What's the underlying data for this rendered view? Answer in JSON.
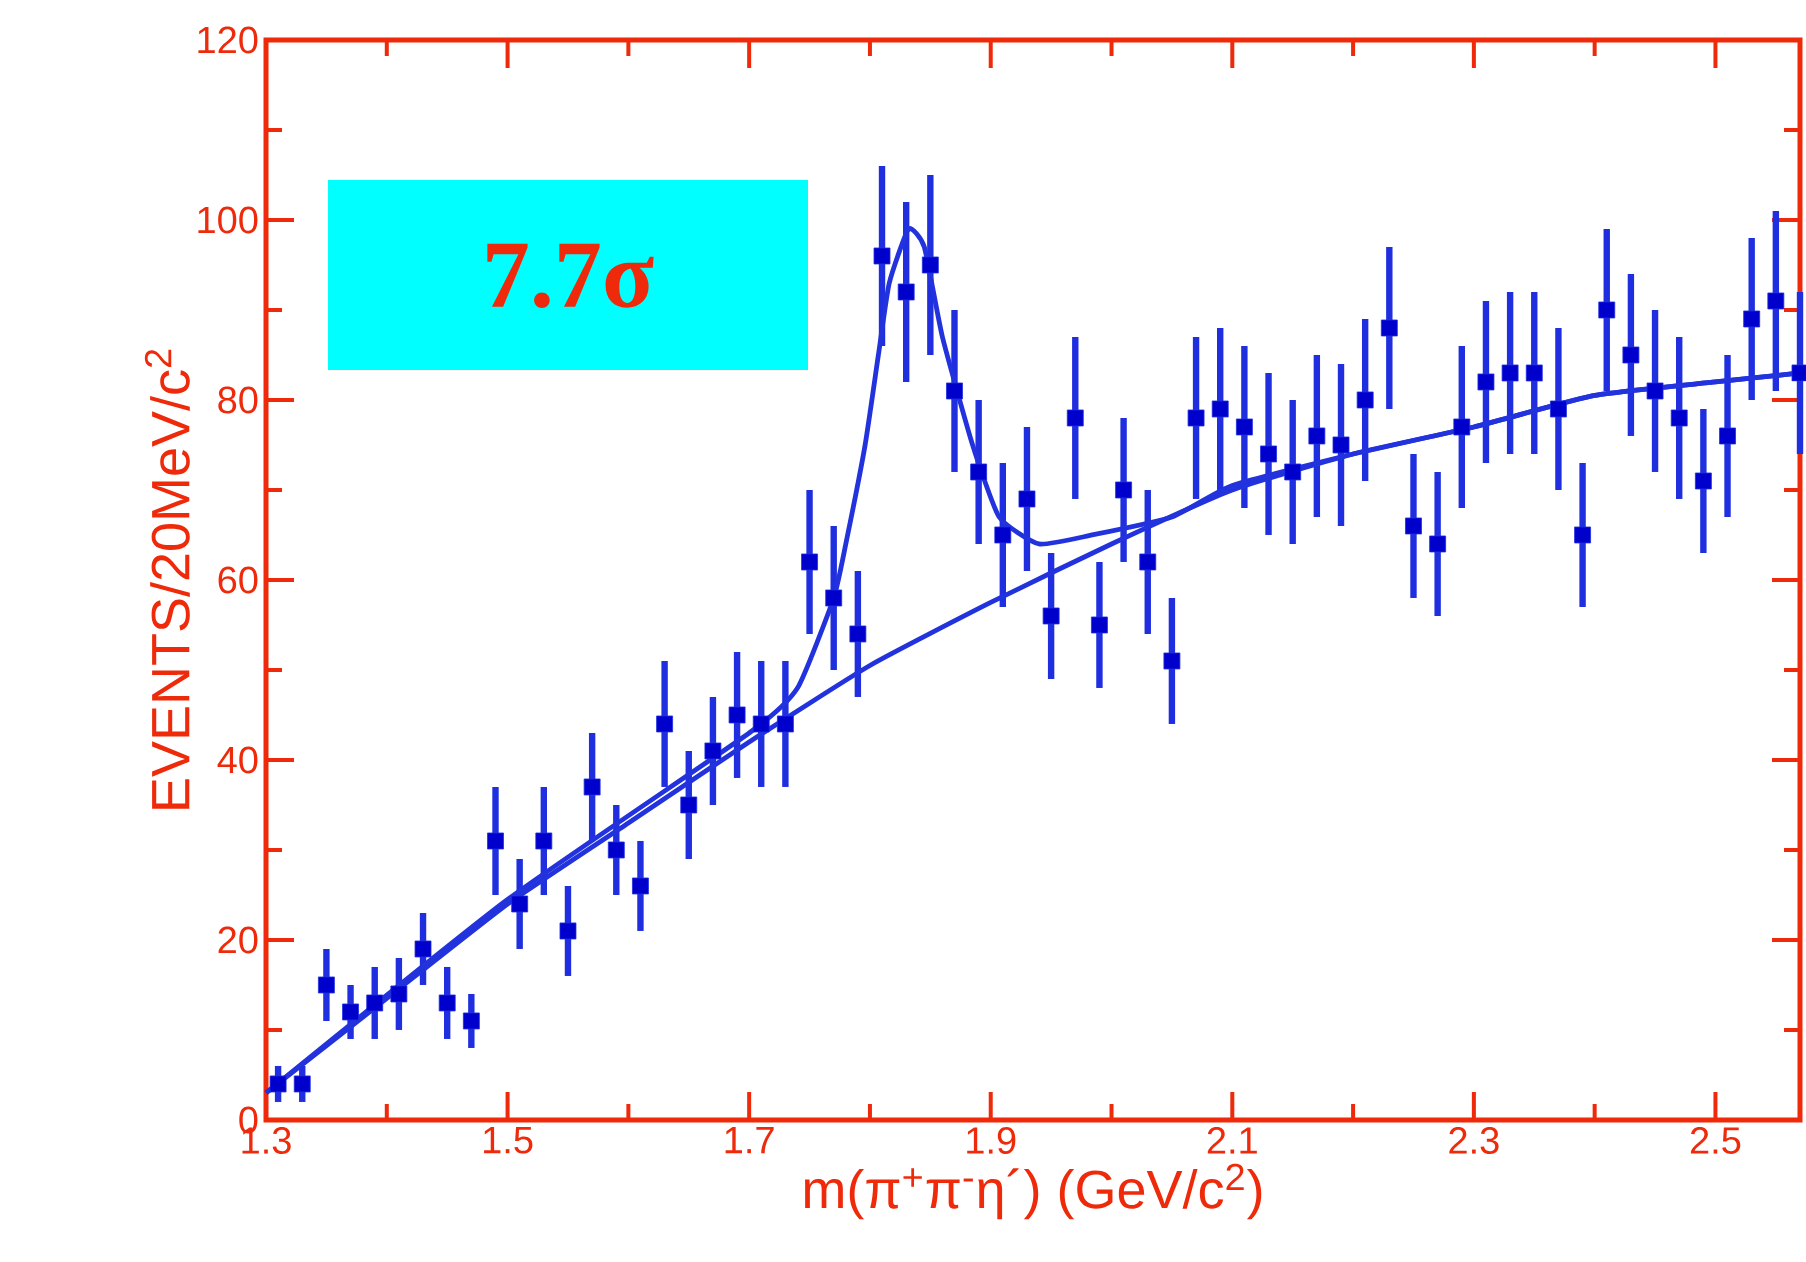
{
  "chart_data": {
    "type": "scatter",
    "xlabel": "m(π$^{+}$π$^{-}$η´)  (GeV/c$^{2}$)",
    "ylabel": "EVENTS/20MeV/c$^{2}$",
    "annotations": [
      "7.7σ"
    ],
    "xlim": [
      1.3,
      2.57
    ],
    "xticks": [
      1.3,
      1.5,
      1.7,
      1.9,
      2.1,
      2.3,
      2.5
    ],
    "ylim": [
      0,
      120
    ],
    "yticks": [
      0,
      20,
      40,
      60,
      80,
      100,
      120
    ],
    "grid": false,
    "series": [
      {
        "color": "#1f2fe0",
        "marker": "square",
        "x": [
          1.31,
          1.33,
          1.35,
          1.37,
          1.39,
          1.41,
          1.43,
          1.45,
          1.47,
          1.49,
          1.51,
          1.53,
          1.55,
          1.57,
          1.59,
          1.61,
          1.63,
          1.65,
          1.67,
          1.69,
          1.71,
          1.73,
          1.75,
          1.77,
          1.79,
          1.81,
          1.83,
          1.85,
          1.87,
          1.89,
          1.91,
          1.93,
          1.95,
          1.97,
          1.99,
          2.01,
          2.03,
          2.05,
          2.07,
          2.09,
          2.11,
          2.13,
          2.15,
          2.17,
          2.19,
          2.21,
          2.23,
          2.25,
          2.27,
          2.29,
          2.31,
          2.33,
          2.35,
          2.37,
          2.39,
          2.41,
          2.43,
          2.45,
          2.47,
          2.49,
          2.51,
          2.53,
          2.55,
          2.57
        ],
        "values": [
          4,
          4,
          15,
          12,
          13,
          14,
          19,
          13,
          11,
          31,
          24,
          31,
          21,
          37,
          30,
          26,
          44,
          35,
          41,
          45,
          44,
          44,
          62,
          58,
          54,
          96,
          92,
          95,
          81,
          72,
          65,
          69,
          56,
          78,
          55,
          70,
          62,
          51,
          78,
          79,
          77,
          74,
          72,
          76,
          75,
          80,
          88,
          66,
          64,
          77,
          82,
          83,
          83,
          79,
          65,
          90,
          85,
          81,
          78,
          71,
          76,
          89,
          91,
          83
        ],
        "errors": [
          2,
          2,
          4,
          3,
          4,
          4,
          4,
          4,
          3,
          6,
          5,
          6,
          5,
          6,
          5,
          5,
          7,
          6,
          6,
          7,
          7,
          7,
          8,
          8,
          7,
          10,
          10,
          10,
          9,
          8,
          8,
          8,
          7,
          9,
          7,
          8,
          8,
          7,
          9,
          9,
          9,
          9,
          8,
          9,
          9,
          9,
          9,
          8,
          8,
          9,
          9,
          9,
          9,
          9,
          8,
          9,
          9,
          9,
          9,
          8,
          9,
          9,
          10,
          9
        ]
      },
      {
        "type": "line",
        "color": "#2233dd",
        "x": [
          1.3,
          1.4,
          1.5,
          1.6,
          1.7,
          1.8,
          1.9,
          2.0,
          2.1,
          2.2,
          2.3,
          2.4,
          2.5,
          2.57
        ],
        "values": [
          3,
          13.5,
          24,
          33,
          42,
          50.5,
          57.5,
          64,
          70,
          74,
          77,
          80.5,
          82,
          83
        ]
      },
      {
        "type": "line",
        "color": "#2233dd",
        "x": [
          1.3,
          1.5,
          1.7,
          1.74,
          1.77,
          1.78,
          1.796,
          1.807,
          1.816,
          1.832,
          1.845,
          1.86,
          1.885,
          1.907,
          1.94,
          1.984,
          2.05,
          2.1,
          2.2,
          2.3,
          2.4,
          2.5,
          2.57
        ],
        "values": [
          3,
          24.5,
          43,
          48,
          58,
          64,
          75,
          85,
          93,
          99,
          97,
          87,
          75,
          67,
          64,
          65,
          67,
          70.5,
          74,
          77,
          80.5,
          82,
          83
        ]
      }
    ]
  }
}
